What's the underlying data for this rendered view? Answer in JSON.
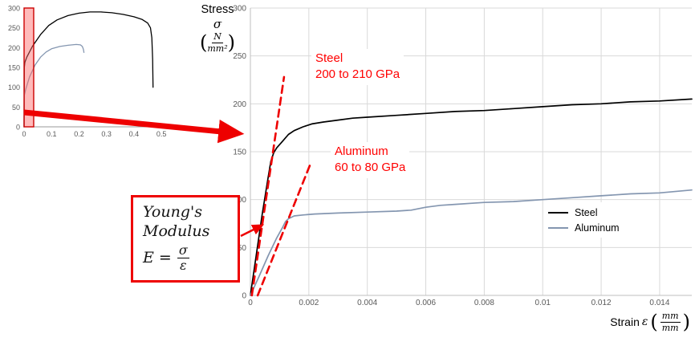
{
  "colors": {
    "steel": "#000000",
    "aluminum": "#8496b0",
    "accent_red": "#ee0000",
    "annotation_red": "#ff0000",
    "grid": "#d9d9d9",
    "axis": "#bfbfbf",
    "tick_text": "#595959"
  },
  "stress_axis_label": {
    "title": "Stress",
    "symbol": "σ",
    "open_paren": "(",
    "unit_numerator": "N",
    "unit_denominator": "mm²",
    "close_paren": ")"
  },
  "strain_axis_label": {
    "title": "Strain",
    "symbol": "ε",
    "open_paren": "(",
    "unit_numerator": "mm",
    "unit_denominator": "mm",
    "close_paren": ")"
  },
  "annotations": {
    "steel_modulus": {
      "line1": "Steel",
      "line2": "200 to 210 GPa"
    },
    "aluminum_modulus": {
      "line1": "Aluminum",
      "line2": "60 to 80 GPa"
    }
  },
  "youngs_modulus_box": {
    "word1": "Young's",
    "word2": "Modulus",
    "lhs": "E =",
    "numerator": "σ",
    "denominator": "ε"
  },
  "legend": {
    "position": "right-middle",
    "items": [
      {
        "label": "Steel",
        "color": "#000000"
      },
      {
        "label": "Aluminum",
        "color": "#8496b0"
      }
    ]
  },
  "chart_data": [
    {
      "name": "elastic-region-detail",
      "type": "line",
      "title": "",
      "xlabel": "Strain ε (mm/mm)",
      "ylabel": "Stress σ (N/mm²)",
      "xlim": [
        0,
        0.0151
      ],
      "ylim": [
        0,
        300
      ],
      "xticks": [
        0,
        0.002,
        0.004,
        0.006,
        0.008,
        0.01,
        0.012,
        0.014
      ],
      "yticks": [
        0,
        50,
        100,
        150,
        200,
        250,
        300
      ],
      "grid": true,
      "legend_position": "right-middle",
      "series": [
        {
          "name": "Steel",
          "color": "#000000",
          "width": 1.7,
          "style": "solid",
          "points": [
            [
              0,
              0
            ],
            [
              0.0002,
              42
            ],
            [
              0.0004,
              84
            ],
            [
              0.0006,
              122
            ],
            [
              0.0007,
              140
            ],
            [
              0.0008,
              149
            ],
            [
              0.0009,
              154
            ],
            [
              0.0011,
              161
            ],
            [
              0.0013,
              168
            ],
            [
              0.0015,
              172
            ],
            [
              0.0018,
              176
            ],
            [
              0.0021,
              179
            ],
            [
              0.0025,
              181
            ],
            [
              0.003,
              183
            ],
            [
              0.0035,
              185
            ],
            [
              0.004,
              186
            ],
            [
              0.005,
              188
            ],
            [
              0.006,
              190
            ],
            [
              0.007,
              192
            ],
            [
              0.008,
              193
            ],
            [
              0.009,
              195
            ],
            [
              0.01,
              197
            ],
            [
              0.011,
              199
            ],
            [
              0.012,
              200
            ],
            [
              0.013,
              202
            ],
            [
              0.014,
              203
            ],
            [
              0.0151,
              205
            ]
          ]
        },
        {
          "name": "Aluminum",
          "color": "#8496b0",
          "width": 1.7,
          "style": "solid",
          "points": [
            [
              0,
              0
            ],
            [
              0.0003,
              20
            ],
            [
              0.0006,
              41
            ],
            [
              0.0009,
              60
            ],
            [
              0.0011,
              71
            ],
            [
              0.0012,
              77
            ],
            [
              0.0013,
              80
            ],
            [
              0.0015,
              83
            ],
            [
              0.0018,
              84
            ],
            [
              0.0022,
              85
            ],
            [
              0.003,
              86
            ],
            [
              0.004,
              87
            ],
            [
              0.005,
              88
            ],
            [
              0.0055,
              89
            ],
            [
              0.006,
              92
            ],
            [
              0.0065,
              94
            ],
            [
              0.007,
              95
            ],
            [
              0.008,
              97
            ],
            [
              0.009,
              98
            ],
            [
              0.01,
              100
            ],
            [
              0.011,
              102
            ],
            [
              0.012,
              104
            ],
            [
              0.013,
              106
            ],
            [
              0.014,
              107
            ],
            [
              0.0151,
              110
            ]
          ]
        },
        {
          "name": "Steel modulus tangent",
          "color": "#ee0000",
          "width": 2.6,
          "style": "dashed",
          "points": [
            [
              5e-05,
              0
            ],
            [
              0.00115,
              228
            ]
          ]
        },
        {
          "name": "Aluminum modulus tangent",
          "color": "#ee0000",
          "width": 2.6,
          "style": "dashed",
          "points": [
            [
              0.00025,
              0
            ],
            [
              0.00205,
              137
            ]
          ]
        }
      ]
    },
    {
      "name": "full-curve-overview",
      "type": "line",
      "xlim": [
        0,
        0.52
      ],
      "ylim": [
        0,
        300
      ],
      "xticks": [
        0,
        0.1,
        0.2,
        0.3,
        0.4,
        0.5
      ],
      "yticks": [
        0,
        50,
        100,
        150,
        200,
        250,
        300
      ],
      "grid": false,
      "highlight_region": {
        "x0": 0,
        "x1": 0.035,
        "fill": "#ff6666",
        "fill_opacity": 0.45,
        "stroke": "#cc0000"
      },
      "series": [
        {
          "name": "Steel",
          "color": "#000000",
          "width": 1.3,
          "style": "solid",
          "points": [
            [
              0,
              0
            ],
            [
              0.001,
              150
            ],
            [
              0.003,
              163
            ],
            [
              0.01,
              176
            ],
            [
              0.03,
              203
            ],
            [
              0.06,
              233
            ],
            [
              0.09,
              256
            ],
            [
              0.12,
              270
            ],
            [
              0.16,
              281
            ],
            [
              0.2,
              287
            ],
            [
              0.24,
              290
            ],
            [
              0.28,
              290
            ],
            [
              0.32,
              288
            ],
            [
              0.36,
              284
            ],
            [
              0.4,
              278
            ],
            [
              0.43,
              271
            ],
            [
              0.45,
              262
            ],
            [
              0.46,
              250
            ],
            [
              0.465,
              225
            ],
            [
              0.468,
              170
            ],
            [
              0.4695,
              100
            ]
          ]
        },
        {
          "name": "Aluminum",
          "color": "#8496b0",
          "width": 1.3,
          "style": "solid",
          "points": [
            [
              0,
              0
            ],
            [
              0.0013,
              80
            ],
            [
              0.006,
              95
            ],
            [
              0.02,
              126
            ],
            [
              0.04,
              156
            ],
            [
              0.06,
              176
            ],
            [
              0.08,
              189
            ],
            [
              0.1,
              197
            ],
            [
              0.13,
              203
            ],
            [
              0.16,
              206
            ],
            [
              0.19,
              208
            ],
            [
              0.205,
              207
            ],
            [
              0.212,
              203
            ],
            [
              0.216,
              196
            ],
            [
              0.218,
              188
            ]
          ]
        }
      ]
    }
  ]
}
